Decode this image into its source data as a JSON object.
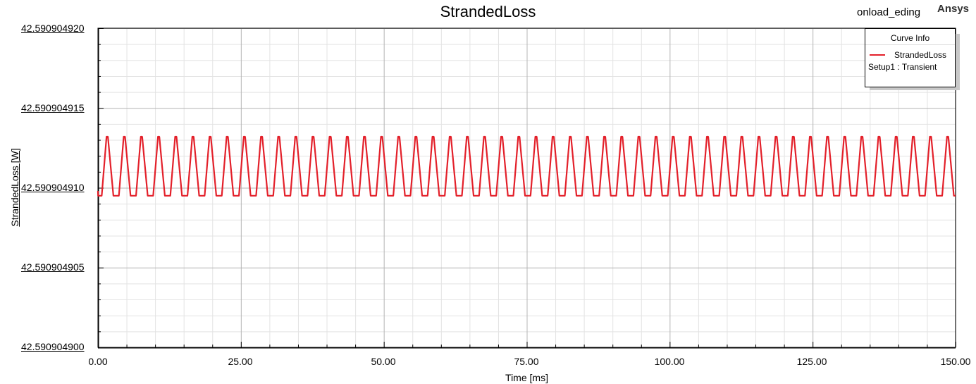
{
  "brand": "Ansys",
  "project": "onload_eding",
  "chart_data": {
    "type": "line",
    "title": "StrandedLoss",
    "xlabel": "Time [ms]",
    "ylabel": "StrandedLoss [W]",
    "xlim": [
      0,
      150
    ],
    "ylim": [
      42.5909049,
      42.59090492
    ],
    "x_ticks": [
      "0.00",
      "25.00",
      "50.00",
      "75.00",
      "100.00",
      "125.00",
      "150.00"
    ],
    "y_ticks": [
      "42.590904920",
      "42.590904915",
      "42.590904910",
      "42.590904905",
      "42.590904900"
    ],
    "grid": true,
    "legend": {
      "title": "Curve Info",
      "placement": "top-right",
      "entries": [
        {
          "name": "StrandedLoss",
          "subtitle": "Setup1 : Transient",
          "color": "#e3202a"
        }
      ]
    },
    "series": [
      {
        "name": "StrandedLoss",
        "color": "#e3202a",
        "waveform": "periodic ripple",
        "period_ms": 3.0,
        "min": 42.5909049095,
        "max": 42.5909049132,
        "start_value": 42.5909049098
      }
    ]
  }
}
